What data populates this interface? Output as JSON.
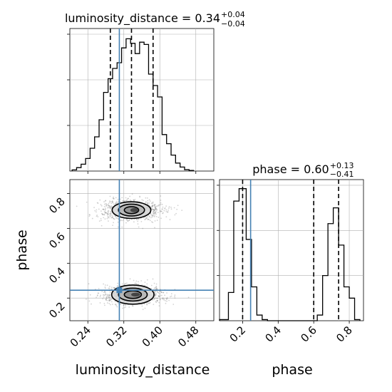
{
  "colors": {
    "truth": "#4682b4",
    "hist": "#000000",
    "grid": "#b0b0b0",
    "scatter": "#808080"
  },
  "chart_data": [
    {
      "type": "histogram",
      "panel": "luminosity_distance-marginal",
      "title": {
        "base": "luminosity_distance = 0.34",
        "sup": "+0.04",
        "sub": "−0.04"
      },
      "xlim": [
        0.2,
        0.52
      ],
      "xticks": [
        0.24,
        0.32,
        0.4,
        0.48
      ],
      "bins": [
        {
          "x0": 0.205,
          "x1": 0.215,
          "count": 0.1
        },
        {
          "x0": 0.215,
          "x1": 0.225,
          "count": 0.3
        },
        {
          "x0": 0.225,
          "x1": 0.235,
          "count": 0.6
        },
        {
          "x0": 0.235,
          "x1": 0.245,
          "count": 1.1
        },
        {
          "x0": 0.245,
          "x1": 0.255,
          "count": 2.0
        },
        {
          "x0": 0.255,
          "x1": 0.265,
          "count": 3.0
        },
        {
          "x0": 0.265,
          "x1": 0.275,
          "count": 4.5
        },
        {
          "x0": 0.275,
          "x1": 0.285,
          "count": 6.9
        },
        {
          "x0": 0.285,
          "x1": 0.295,
          "count": 8.1
        },
        {
          "x0": 0.295,
          "x1": 0.305,
          "count": 9.0
        },
        {
          "x0": 0.305,
          "x1": 0.315,
          "count": 9.5
        },
        {
          "x0": 0.315,
          "x1": 0.325,
          "count": 10.8
        },
        {
          "x0": 0.325,
          "x1": 0.335,
          "count": 11.6
        },
        {
          "x0": 0.335,
          "x1": 0.345,
          "count": 11.2
        },
        {
          "x0": 0.345,
          "x1": 0.355,
          "count": 10.3
        },
        {
          "x0": 0.355,
          "x1": 0.365,
          "count": 11.3
        },
        {
          "x0": 0.365,
          "x1": 0.375,
          "count": 11.1
        },
        {
          "x0": 0.375,
          "x1": 0.385,
          "count": 8.5
        },
        {
          "x0": 0.385,
          "x1": 0.395,
          "count": 7.5
        },
        {
          "x0": 0.395,
          "x1": 0.405,
          "count": 6.5
        },
        {
          "x0": 0.405,
          "x1": 0.415,
          "count": 3.2
        },
        {
          "x0": 0.415,
          "x1": 0.425,
          "count": 2.4
        },
        {
          "x0": 0.425,
          "x1": 0.435,
          "count": 1.4
        },
        {
          "x0": 0.435,
          "x1": 0.445,
          "count": 0.7
        },
        {
          "x0": 0.445,
          "x1": 0.455,
          "count": 0.35
        },
        {
          "x0": 0.455,
          "x1": 0.465,
          "count": 0.12
        },
        {
          "x0": 0.465,
          "x1": 0.475,
          "count": 0.05
        }
      ],
      "ylim": [
        0,
        12.5
      ],
      "quantiles": [
        0.29,
        0.337,
        0.385
      ],
      "truth": 0.31,
      "grid": true
    },
    {
      "type": "histogram",
      "panel": "phase-marginal",
      "title": {
        "base": "phase = 0.60",
        "sup": "+0.13",
        "sub": "−0.41"
      },
      "xlim": [
        0.07,
        0.88
      ],
      "xticks": [
        0.2,
        0.4,
        0.6,
        0.8
      ],
      "xlabel": "phase",
      "bins": [
        {
          "x0": 0.07,
          "x1": 0.12,
          "count": 0.1
        },
        {
          "x0": 0.12,
          "x1": 0.15,
          "count": 2.5
        },
        {
          "x0": 0.15,
          "x1": 0.18,
          "count": 10.6
        },
        {
          "x0": 0.18,
          "x1": 0.22,
          "count": 11.7
        },
        {
          "x0": 0.22,
          "x1": 0.25,
          "count": 7.2
        },
        {
          "x0": 0.25,
          "x1": 0.28,
          "count": 3.0
        },
        {
          "x0": 0.28,
          "x1": 0.31,
          "count": 0.5
        },
        {
          "x0": 0.31,
          "x1": 0.34,
          "count": 0.1
        },
        {
          "x0": 0.34,
          "x1": 0.62,
          "count": 0.0
        },
        {
          "x0": 0.62,
          "x1": 0.65,
          "count": 0.5
        },
        {
          "x0": 0.65,
          "x1": 0.68,
          "count": 4.0
        },
        {
          "x0": 0.68,
          "x1": 0.71,
          "count": 8.6
        },
        {
          "x0": 0.71,
          "x1": 0.74,
          "count": 10.0
        },
        {
          "x0": 0.74,
          "x1": 0.77,
          "count": 6.7
        },
        {
          "x0": 0.77,
          "x1": 0.8,
          "count": 3.0
        },
        {
          "x0": 0.8,
          "x1": 0.83,
          "count": 2.0
        },
        {
          "x0": 0.83,
          "x1": 0.86,
          "count": 0.1
        }
      ],
      "ylim": [
        0,
        12.5
      ],
      "quantiles": [
        0.2,
        0.6,
        0.74
      ],
      "truth": 0.245,
      "grid": true
    },
    {
      "type": "scatter-contour",
      "panel": "phase-vs-luminosity_distance",
      "xlabel": "luminosity_distance",
      "ylabel": "phase",
      "xlim": [
        0.2,
        0.52
      ],
      "ylim": [
        0.07,
        0.88
      ],
      "xticks": [
        0.24,
        0.32,
        0.4,
        0.48
      ],
      "yticks": [
        0.2,
        0.4,
        0.6,
        0.8
      ],
      "clusters": [
        {
          "center": [
            0.337,
            0.705
          ],
          "spread": [
            0.035,
            0.035
          ],
          "contour_radii": [
            [
              0.043,
              0.048
            ],
            [
              0.029,
              0.034
            ],
            [
              0.016,
              0.02
            ]
          ],
          "core_radius": [
            0.009,
            0.012
          ]
        },
        {
          "center": [
            0.34,
            0.22
          ],
          "spread": [
            0.035,
            0.03
          ],
          "contour_radii": [
            [
              0.047,
              0.055
            ],
            [
              0.032,
              0.037
            ],
            [
              0.019,
              0.022
            ]
          ],
          "core_radius": [
            0.01,
            0.011
          ]
        }
      ],
      "truth": [
        0.31,
        0.245
      ],
      "grid": true
    }
  ]
}
